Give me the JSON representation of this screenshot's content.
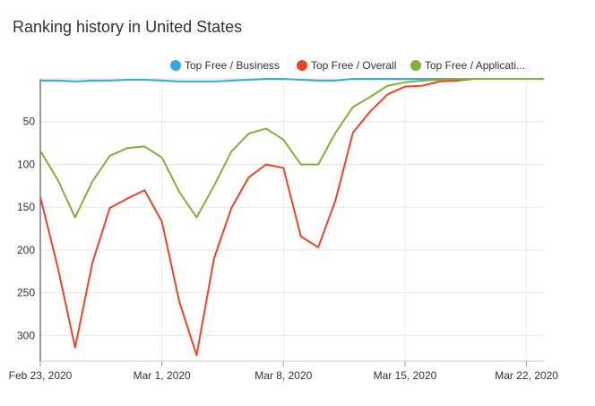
{
  "chart_data": {
    "type": "line",
    "title": "Ranking history in United States",
    "xlabel": "",
    "ylabel": "",
    "x_ticks": [
      "Feb 23, 2020",
      "Mar 1, 2020",
      "Mar 8, 2020",
      "Mar 15, 2020",
      "Mar 22, 2020"
    ],
    "y_ticks": [
      50,
      100,
      150,
      200,
      250,
      300
    ],
    "ylim": [
      1,
      330
    ],
    "y_reversed": true,
    "grid": true,
    "legend_position": "top-right",
    "x": [
      "2020-02-23",
      "2020-02-24",
      "2020-02-25",
      "2020-02-26",
      "2020-02-27",
      "2020-02-28",
      "2020-02-29",
      "2020-03-01",
      "2020-03-02",
      "2020-03-03",
      "2020-03-04",
      "2020-03-05",
      "2020-03-06",
      "2020-03-07",
      "2020-03-08",
      "2020-03-09",
      "2020-03-10",
      "2020-03-11",
      "2020-03-12",
      "2020-03-13",
      "2020-03-14",
      "2020-03-15",
      "2020-03-16",
      "2020-03-17",
      "2020-03-18",
      "2020-03-19",
      "2020-03-20",
      "2020-03-21",
      "2020-03-22",
      "2020-03-23"
    ],
    "series": [
      {
        "name": "Top Free / Business",
        "color": "#36a9e1",
        "values": [
          2,
          2,
          3,
          2,
          2,
          1,
          1,
          2,
          3,
          3,
          3,
          2,
          1,
          0,
          0,
          1,
          2,
          2,
          0,
          0,
          0,
          0,
          0,
          0,
          0,
          0,
          0,
          0,
          0,
          0
        ]
      },
      {
        "name": "Top Free / Overall",
        "color": "#e8462a",
        "values": [
          138,
          220,
          314,
          215,
          151,
          140,
          130,
          167,
          260,
          323,
          210,
          151,
          115,
          100,
          104,
          184,
          197,
          142,
          63,
          38,
          18,
          9,
          8,
          3,
          2,
          0,
          0,
          0,
          0,
          0
        ]
      },
      {
        "name": "Top Free / Applicati...",
        "color": "#82b03a",
        "values": [
          84,
          118,
          162,
          120,
          90,
          81,
          79,
          92,
          132,
          162,
          125,
          85,
          64,
          58,
          71,
          100,
          100,
          63,
          33,
          21,
          8,
          4,
          2,
          1,
          0,
          0,
          0,
          0,
          0,
          0
        ]
      }
    ]
  }
}
